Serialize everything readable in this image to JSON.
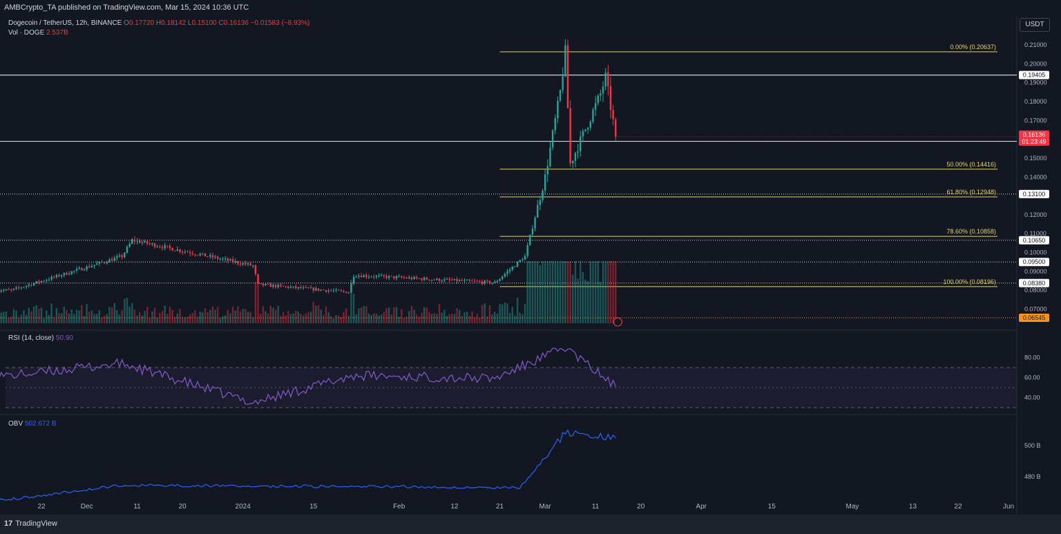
{
  "header": {
    "publish_line": "AMBCrypto_TA published on TradingView.com, Mar 15, 2024 10:36 UTC"
  },
  "legend": {
    "symbol": "Dogecoin / TetherUS, 12h, BINANCE",
    "o_label": "O",
    "o_val": "0.17720",
    "h_label": "H",
    "h_val": "0.18142",
    "l_label": "L",
    "l_val": "0.15100",
    "c_label": "C",
    "c_val": "0.16136",
    "change": "−0.01583 (−8.93%)",
    "vol_label": "Vol · DOGE",
    "vol_val": "2.537B"
  },
  "rsi_legend": {
    "label": "RSI (14, close)",
    "value": "50.90"
  },
  "obv_legend": {
    "label": "OBV",
    "value": "502.672 B"
  },
  "currency_button": "USDT",
  "footer": {
    "brand": "TradingView"
  },
  "colors": {
    "background": "#131722",
    "up": "#26a69a",
    "down": "#f23645",
    "fib": "#e6d36d",
    "rsi": "#7e57c2",
    "obv": "#2962ff",
    "level": "#d1d4dc",
    "last_price": "#f23645",
    "orange": "#f7931a"
  },
  "chart_data": [
    {
      "type": "candlestick",
      "title": "Dogecoin / TetherUS, 12h, BINANCE",
      "y_scale": "linear",
      "ylim": [
        0.0625,
        0.2155
      ],
      "y_ticks": [
        "0.07000",
        "0.08000",
        "0.09000",
        "0.10000",
        "0.11000",
        "0.12000",
        "0.13000",
        "0.14000",
        "0.15000",
        "0.16000",
        "0.17000",
        "0.18000",
        "0.19000",
        "0.20000",
        "0.21000"
      ],
      "x_ticks": [
        "22",
        "Dec",
        "11",
        "20",
        "2024",
        "15",
        "Feb",
        "12",
        "21",
        "Mar",
        "11",
        "20",
        "Apr",
        "15",
        "May",
        "13",
        "22",
        "Jun"
      ],
      "grid": false,
      "key_prices": [
        {
          "x": "2023-11-16",
          "y": 0.08
        },
        {
          "x": "2023-12-08",
          "y": 0.098
        },
        {
          "x": "2023-12-10",
          "y": 0.1065
        },
        {
          "x": "2024-01-03",
          "y": 0.093
        },
        {
          "x": "2024-01-04",
          "y": 0.083
        },
        {
          "x": "2024-01-22",
          "y": 0.079
        },
        {
          "x": "2024-01-23",
          "y": 0.088
        },
        {
          "x": "2024-02-20",
          "y": 0.084
        },
        {
          "x": "2024-02-26",
          "y": 0.098
        },
        {
          "x": "2024-03-01",
          "y": 0.14
        },
        {
          "x": "2024-03-04",
          "y": 0.185
        },
        {
          "x": "2024-03-05",
          "y": 0.2063
        },
        {
          "x": "2024-03-06",
          "y": 0.147
        },
        {
          "x": "2024-03-12",
          "y": 0.184
        },
        {
          "x": "2024-03-13",
          "y": 0.193
        },
        {
          "x": "2024-03-14",
          "y": 0.1772
        },
        {
          "x": "2024-03-15",
          "y": 0.1614
        }
      ],
      "horizontal_levels": [
        {
          "value": 0.19405,
          "label": "0.19405",
          "style": "solid"
        },
        {
          "value": 0.15893,
          "label": "0.15893",
          "style": "solid"
        },
        {
          "value": 0.131,
          "label": "0.13100",
          "style": "dotted"
        },
        {
          "value": 0.1065,
          "label": "0.10650",
          "style": "dotted"
        },
        {
          "value": 0.095,
          "label": "0.09500",
          "style": "dotted"
        },
        {
          "value": 0.0838,
          "label": "0.08380",
          "style": "dotted"
        },
        {
          "value": 0.06545,
          "label": "0.06545",
          "style": "dotted-orange"
        }
      ],
      "fibonacci": [
        {
          "label": "0.00% (0.20637)",
          "value": 0.20637
        },
        {
          "label": "50.00% (0.14416)",
          "value": 0.14416
        },
        {
          "label": "61.80% (0.12948)",
          "value": 0.12948
        },
        {
          "label": "78.60% (0.10858)",
          "value": 0.10858
        },
        {
          "label": "100.00% (0.08196)",
          "value": 0.08196
        }
      ],
      "last_price": {
        "value": 0.16136,
        "label": "0.16136",
        "countdown": "01:23:49"
      }
    },
    {
      "type": "line",
      "title": "RSI (14, close)",
      "ylim": [
        28,
        92
      ],
      "y_ticks": [
        "80.00",
        "60.00",
        "40.00"
      ],
      "bands": [
        70,
        50,
        30
      ],
      "key_values": [
        {
          "x": "2023-11-16",
          "y": 62
        },
        {
          "x": "2023-12-08",
          "y": 74
        },
        {
          "x": "2024-01-03",
          "y": 35
        },
        {
          "x": "2024-01-23",
          "y": 62
        },
        {
          "x": "2024-02-20",
          "y": 59
        },
        {
          "x": "2024-03-05",
          "y": 90
        },
        {
          "x": "2024-03-15",
          "y": 50.9
        }
      ]
    },
    {
      "type": "line",
      "title": "OBV",
      "y_ticks": [
        "500 B",
        "480 B"
      ],
      "key_values": [
        {
          "x": "2023-11-16",
          "y": 476
        },
        {
          "x": "2023-12-08",
          "y": 482
        },
        {
          "x": "2024-02-25",
          "y": 481
        },
        {
          "x": "2024-03-05",
          "y": 505
        },
        {
          "x": "2024-03-15",
          "y": 502.672
        }
      ]
    }
  ]
}
